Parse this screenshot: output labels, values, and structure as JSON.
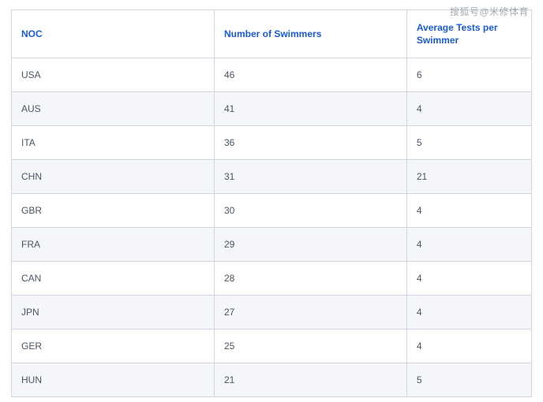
{
  "watermark": "搜狐号@米修体育",
  "table": {
    "type": "table",
    "header_color": "#1a5bd6",
    "cell_text_color": "#4a5564",
    "border_color": "#d0d6e0",
    "row_bg_odd": "#ffffff",
    "row_bg_even": "#f4f6fa",
    "header_fontsize": 12,
    "cell_fontsize": 12,
    "columns": [
      {
        "key": "noc",
        "label": "NOC",
        "width_pct": 39,
        "align": "left"
      },
      {
        "key": "swimmers",
        "label": "Number of Swimmers",
        "width_pct": 37,
        "align": "left"
      },
      {
        "key": "avg",
        "label": "Average Tests per Swimmer",
        "width_pct": 24,
        "align": "left"
      }
    ],
    "rows": [
      {
        "noc": "USA",
        "swimmers": "46",
        "avg": "6"
      },
      {
        "noc": "AUS",
        "swimmers": "41",
        "avg": "4"
      },
      {
        "noc": "ITA",
        "swimmers": "36",
        "avg": "5"
      },
      {
        "noc": "CHN",
        "swimmers": "31",
        "avg": "21"
      },
      {
        "noc": "GBR",
        "swimmers": "30",
        "avg": "4"
      },
      {
        "noc": "FRA",
        "swimmers": "29",
        "avg": "4"
      },
      {
        "noc": "CAN",
        "swimmers": "28",
        "avg": "4"
      },
      {
        "noc": "JPN",
        "swimmers": "27",
        "avg": "4"
      },
      {
        "noc": "GER",
        "swimmers": "25",
        "avg": "4"
      },
      {
        "noc": "HUN",
        "swimmers": "21",
        "avg": "5"
      }
    ]
  }
}
